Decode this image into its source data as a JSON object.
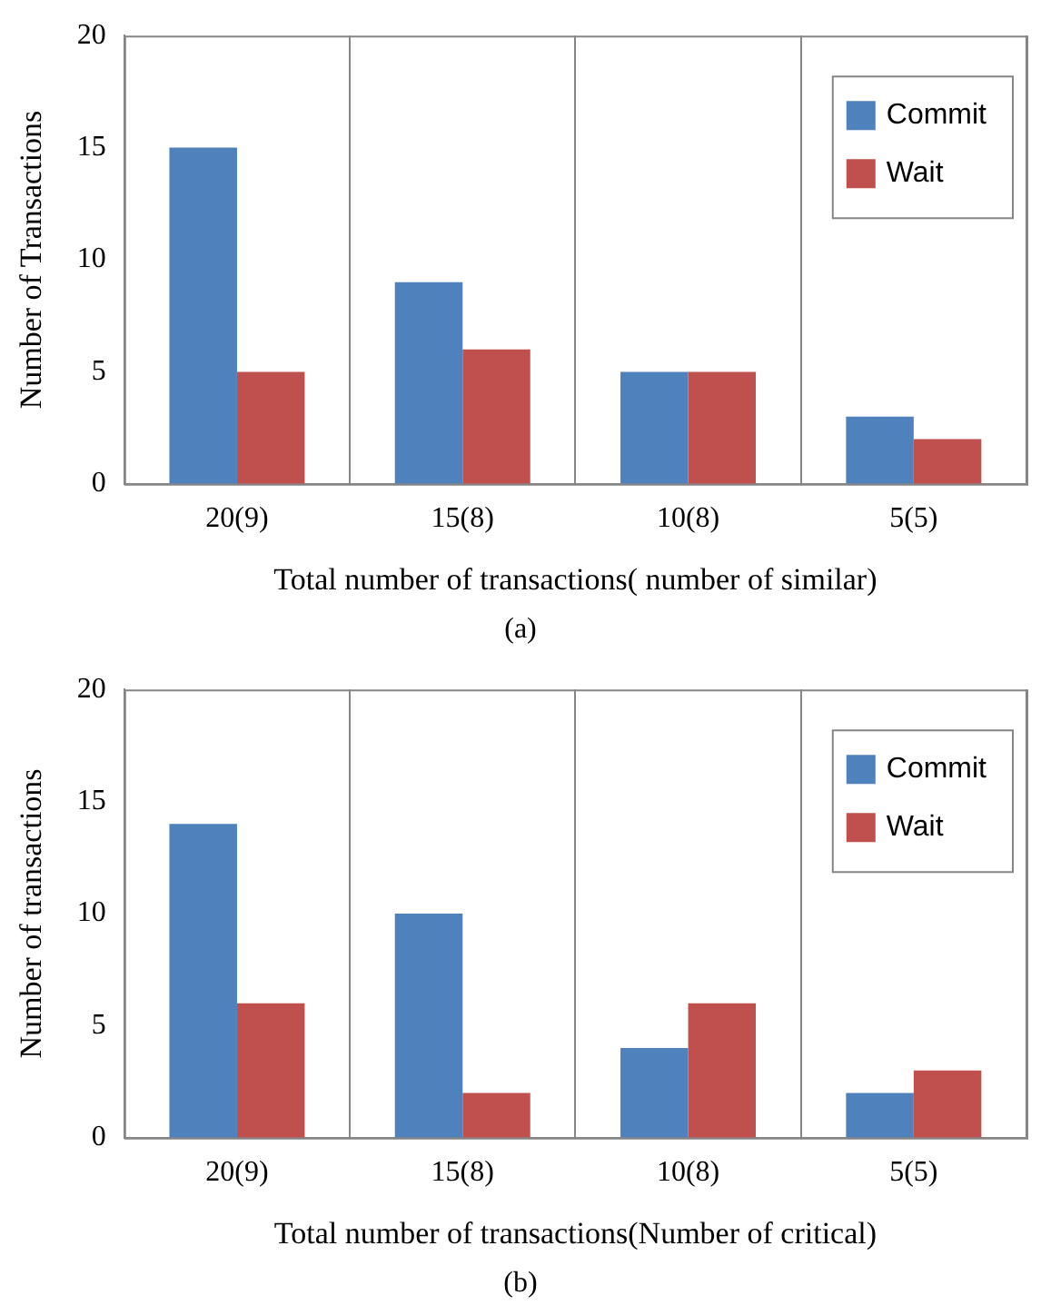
{
  "chart_data": [
    {
      "type": "bar",
      "categories": [
        "20(9)",
        "15(8)",
        "10(8)",
        "5(5)"
      ],
      "xlabel": "Total number of transactions( number of similar)",
      "ylabel": "Number of Transactions",
      "ylim": [
        0,
        20
      ],
      "yticks": [
        0,
        5,
        10,
        15,
        20
      ],
      "grid": "x",
      "legend": "top right",
      "annotations": [
        "(a)"
      ],
      "series": [
        {
          "name": "Commit",
          "color": "#4f81bd",
          "values": [
            15,
            9,
            5,
            3
          ]
        },
        {
          "name": "Wait",
          "color": "#c0504d",
          "values": [
            5,
            6,
            5,
            2
          ]
        }
      ]
    },
    {
      "type": "bar",
      "categories": [
        "20(9)",
        "15(8)",
        "10(8)",
        "5(5)"
      ],
      "xlabel": "Total number of transactions(Number of critical)",
      "ylabel": "Number of transactions",
      "ylim": [
        0,
        20
      ],
      "yticks": [
        0,
        5,
        10,
        15,
        20
      ],
      "grid": "x",
      "legend": "top right",
      "annotations": [
        "(b)"
      ],
      "series": [
        {
          "name": "Commit",
          "color": "#4f81bd",
          "values": [
            14,
            10,
            4,
            2
          ]
        },
        {
          "name": "Wait",
          "color": "#c0504d",
          "values": [
            6,
            2,
            6,
            3
          ]
        }
      ]
    }
  ]
}
